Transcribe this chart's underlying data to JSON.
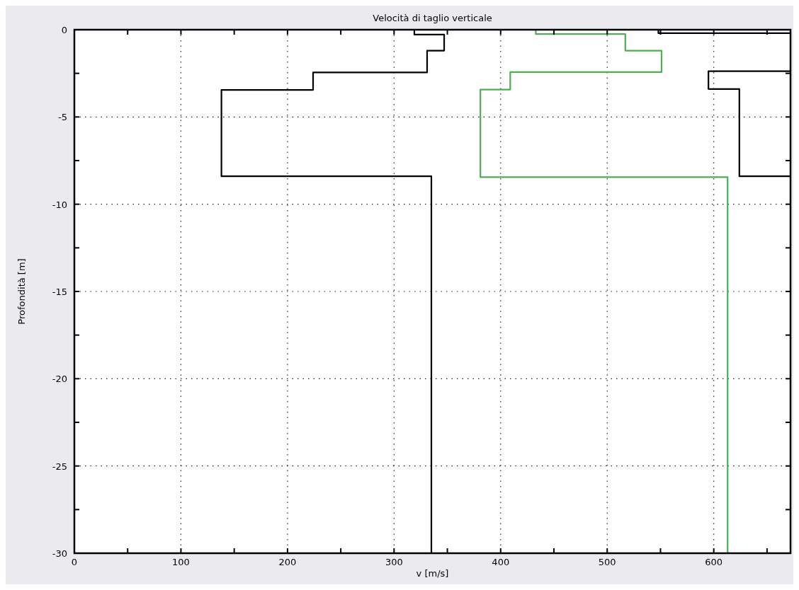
{
  "chart_data": {
    "type": "line",
    "title": "Velocità di taglio verticale",
    "xlabel": "v [m/s]",
    "ylabel": "Profondità [m]",
    "xlim": [
      0,
      672
    ],
    "ylim": [
      -30,
      0
    ],
    "xticks": [
      0,
      {
        "value": 50,
        "label": null
      },
      100,
      {
        "value": 150,
        "label": null
      },
      200,
      {
        "value": 250,
        "label": null
      },
      300,
      {
        "value": 350,
        "label": null
      },
      400,
      {
        "value": 450,
        "label": null
      },
      500,
      {
        "value": 550,
        "label": null
      },
      600,
      {
        "value": 650,
        "label": null
      }
    ],
    "yticks": [
      -30,
      {
        "value": -27.5,
        "label": null
      },
      -25,
      {
        "value": -22.5,
        "label": null
      },
      -20,
      {
        "value": -17.5,
        "label": null
      },
      -15,
      {
        "value": -12.5,
        "label": null
      },
      -10,
      {
        "value": -7.5,
        "label": null
      },
      -5,
      {
        "value": -2.5,
        "label": null
      },
      0
    ],
    "grid": true,
    "line_style": "solid",
    "marker": "none",
    "series": [
      {
        "color": "#000000",
        "x": [
          319,
          319,
          347,
          347,
          331,
          331,
          224,
          224,
          138,
          138,
          335,
          335
        ],
        "values": [
          0,
          -0.28,
          -0.28,
          -1.2,
          -1.2,
          -2.45,
          -2.45,
          -3.45,
          -3.45,
          -8.4,
          -8.4,
          -30
        ]
      },
      {
        "color": "#4caf50",
        "x": [
          433,
          433,
          517,
          517,
          551,
          551,
          409,
          409,
          381,
          381,
          613,
          613
        ],
        "values": [
          0,
          -0.25,
          -0.25,
          -1.2,
          -1.2,
          -2.43,
          -2.43,
          -3.43,
          -3.43,
          -8.45,
          -8.45,
          -30
        ]
      },
      {
        "color": "#000000",
        "x": [
          548,
          548,
          672,
          null,
          672,
          595,
          595,
          624,
          624,
          672
        ],
        "values": [
          0,
          -0.2,
          -0.2,
          null,
          -2.38,
          -2.38,
          -3.4,
          -3.4,
          -8.4,
          -8.4
        ]
      }
    ]
  }
}
